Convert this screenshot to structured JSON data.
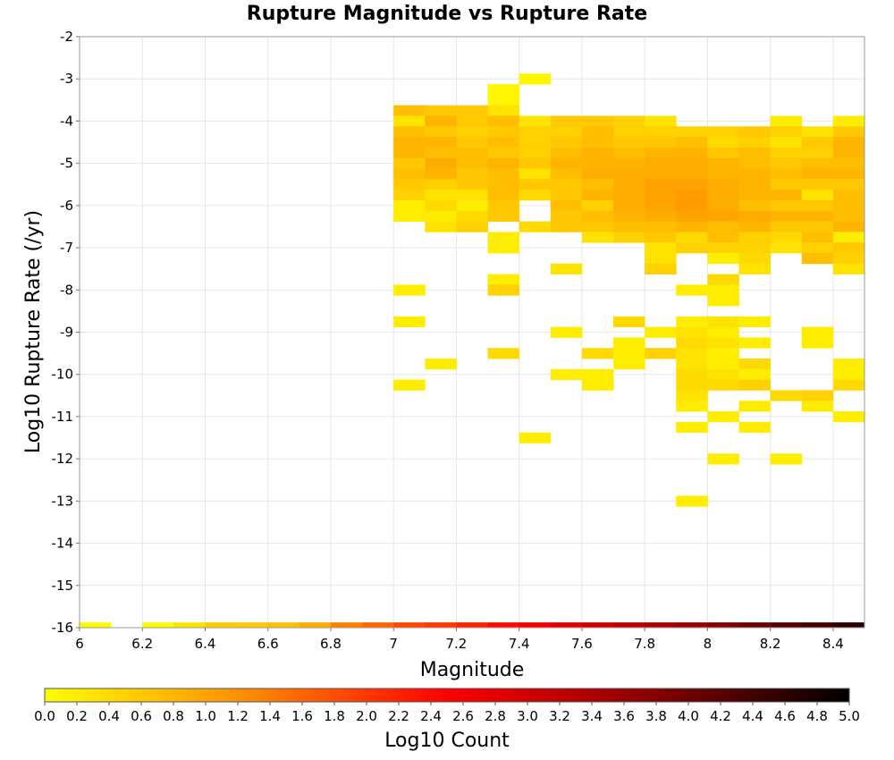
{
  "chart_data": {
    "type": "heatmap",
    "title": "Rupture Magnitude vs Rupture Rate",
    "xlabel": "Magnitude",
    "ylabel": "Log10 Rupture Rate (/yr)",
    "xlim": [
      6.0,
      8.5
    ],
    "ylim": [
      -16,
      -2
    ],
    "x_ticks": [
      "6",
      "6.2",
      "6.4",
      "6.6",
      "6.8",
      "7",
      "7.2",
      "7.4",
      "7.6",
      "7.8",
      "8",
      "8.2",
      "8.4"
    ],
    "y_ticks": [
      "-2",
      "-3",
      "-4",
      "-5",
      "-6",
      "-7",
      "-8",
      "-9",
      "-10",
      "-11",
      "-12",
      "-13",
      "-14",
      "-15",
      "-16"
    ],
    "grid": true,
    "bin_width_x": 0.1,
    "bin_height_y": 0.25,
    "colorbar": {
      "label": "Log10 Count",
      "min": 0.0,
      "max": 5.0,
      "ticks": [
        "0.0",
        "0.2",
        "0.4",
        "0.6",
        "0.8",
        "1.0",
        "1.2",
        "1.4",
        "1.6",
        "1.8",
        "2.0",
        "2.2",
        "2.4",
        "2.6",
        "2.8",
        "3.0",
        "3.2",
        "3.4",
        "3.6",
        "3.8",
        "4.0",
        "4.2",
        "4.4",
        "4.6",
        "4.8",
        "5.0"
      ],
      "colors": [
        "#ffff00",
        "#ff8c00",
        "#ff0000",
        "#8b0000",
        "#000000"
      ]
    },
    "bottom_row_strip": {
      "y": -16,
      "note_values": [
        0.05,
        null,
        0.05,
        0.3,
        0.55,
        0.6,
        0.7,
        0.9,
        1.35,
        1.6,
        1.85,
        2.0,
        2.2,
        2.4,
        2.6,
        2.8,
        3.0,
        3.2,
        3.4,
        3.6,
        3.8,
        4.0,
        4.2,
        4.4,
        4.6
      ]
    },
    "cells": [
      [
        7.3,
        -3.25,
        0.1
      ],
      [
        7.3,
        -3.5,
        0.1
      ],
      [
        7.4,
        -3.0,
        0.1
      ],
      [
        7.0,
        -3.75,
        0.7
      ],
      [
        7.1,
        -3.75,
        0.6
      ],
      [
        7.2,
        -3.75,
        0.6
      ],
      [
        7.3,
        -3.75,
        0.3
      ],
      [
        7.0,
        -4.0,
        0.3
      ],
      [
        7.1,
        -4.0,
        0.8
      ],
      [
        7.2,
        -4.0,
        0.6
      ],
      [
        7.3,
        -4.0,
        0.7
      ],
      [
        7.4,
        -4.0,
        0.3
      ],
      [
        7.5,
        -4.0,
        0.6
      ],
      [
        7.6,
        -4.0,
        0.6
      ],
      [
        7.7,
        -4.0,
        0.5
      ],
      [
        7.8,
        -4.0,
        0.3
      ],
      [
        8.2,
        -4.0,
        0.2
      ],
      [
        8.4,
        -4.0,
        0.2
      ],
      [
        7.0,
        -4.25,
        0.7
      ],
      [
        7.1,
        -4.25,
        0.6
      ],
      [
        7.2,
        -4.25,
        0.5
      ],
      [
        7.3,
        -4.25,
        0.6
      ],
      [
        7.4,
        -4.25,
        0.5
      ],
      [
        7.5,
        -4.25,
        0.5
      ],
      [
        7.6,
        -4.25,
        0.7
      ],
      [
        7.7,
        -4.25,
        0.5
      ],
      [
        7.8,
        -4.25,
        0.5
      ],
      [
        7.9,
        -4.25,
        0.5
      ],
      [
        8.0,
        -4.25,
        0.5
      ],
      [
        8.1,
        -4.25,
        0.6
      ],
      [
        8.2,
        -4.25,
        0.5
      ],
      [
        8.3,
        -4.25,
        0.3
      ],
      [
        8.4,
        -4.25,
        0.6
      ],
      [
        7.0,
        -4.5,
        0.8
      ],
      [
        7.1,
        -4.5,
        0.8
      ],
      [
        7.2,
        -4.5,
        0.6
      ],
      [
        7.3,
        -4.5,
        0.7
      ],
      [
        7.4,
        -4.5,
        0.5
      ],
      [
        7.5,
        -4.5,
        0.6
      ],
      [
        7.6,
        -4.5,
        0.7
      ],
      [
        7.7,
        -4.5,
        0.6
      ],
      [
        7.8,
        -4.5,
        0.6
      ],
      [
        7.9,
        -4.5,
        0.7
      ],
      [
        8.0,
        -4.5,
        0.4
      ],
      [
        8.1,
        -4.5,
        0.5
      ],
      [
        8.2,
        -4.5,
        0.3
      ],
      [
        8.3,
        -4.5,
        0.6
      ],
      [
        8.4,
        -4.5,
        0.8
      ],
      [
        7.0,
        -4.75,
        0.8
      ],
      [
        7.1,
        -4.75,
        0.7
      ],
      [
        7.2,
        -4.75,
        0.7
      ],
      [
        7.3,
        -4.75,
        0.6
      ],
      [
        7.4,
        -4.75,
        0.5
      ],
      [
        7.5,
        -4.75,
        0.7
      ],
      [
        7.6,
        -4.75,
        0.8
      ],
      [
        7.7,
        -4.75,
        0.7
      ],
      [
        7.8,
        -4.75,
        0.8
      ],
      [
        7.9,
        -4.75,
        0.8
      ],
      [
        8.0,
        -4.75,
        0.6
      ],
      [
        8.1,
        -4.75,
        0.7
      ],
      [
        8.2,
        -4.75,
        0.5
      ],
      [
        8.3,
        -4.75,
        0.5
      ],
      [
        8.4,
        -4.75,
        0.8
      ],
      [
        7.0,
        -5.0,
        0.6
      ],
      [
        7.1,
        -5.0,
        0.9
      ],
      [
        7.2,
        -5.0,
        0.7
      ],
      [
        7.3,
        -5.0,
        0.8
      ],
      [
        7.4,
        -5.0,
        0.6
      ],
      [
        7.5,
        -5.0,
        0.8
      ],
      [
        7.6,
        -5.0,
        0.8
      ],
      [
        7.7,
        -5.0,
        0.8
      ],
      [
        7.8,
        -5.0,
        0.9
      ],
      [
        7.9,
        -5.0,
        0.9
      ],
      [
        8.0,
        -5.0,
        0.8
      ],
      [
        8.1,
        -5.0,
        0.7
      ],
      [
        8.2,
        -5.0,
        0.6
      ],
      [
        8.3,
        -5.0,
        0.7
      ],
      [
        8.4,
        -5.0,
        0.7
      ],
      [
        7.0,
        -5.25,
        0.7
      ],
      [
        7.1,
        -5.25,
        0.8
      ],
      [
        7.2,
        -5.25,
        0.6
      ],
      [
        7.3,
        -5.25,
        0.7
      ],
      [
        7.4,
        -5.25,
        0.3
      ],
      [
        7.5,
        -5.25,
        0.7
      ],
      [
        7.6,
        -5.25,
        0.9
      ],
      [
        7.7,
        -5.25,
        0.9
      ],
      [
        7.8,
        -5.25,
        0.9
      ],
      [
        7.9,
        -5.25,
        0.9
      ],
      [
        8.0,
        -5.25,
        0.8
      ],
      [
        8.1,
        -5.25,
        0.8
      ],
      [
        8.2,
        -5.25,
        0.7
      ],
      [
        8.3,
        -5.25,
        0.8
      ],
      [
        8.4,
        -5.25,
        0.8
      ],
      [
        7.0,
        -5.5,
        0.6
      ],
      [
        7.1,
        -5.5,
        0.5
      ],
      [
        7.2,
        -5.5,
        0.6
      ],
      [
        7.3,
        -5.5,
        0.7
      ],
      [
        7.4,
        -5.5,
        0.6
      ],
      [
        7.5,
        -5.5,
        0.6
      ],
      [
        7.6,
        -5.5,
        0.7
      ],
      [
        7.7,
        -5.5,
        0.9
      ],
      [
        7.8,
        -5.5,
        1.0
      ],
      [
        7.9,
        -5.5,
        1.0
      ],
      [
        8.0,
        -5.5,
        0.9
      ],
      [
        8.1,
        -5.5,
        0.8
      ],
      [
        8.2,
        -5.5,
        0.6
      ],
      [
        8.3,
        -5.5,
        0.6
      ],
      [
        8.4,
        -5.5,
        0.6
      ],
      [
        7.0,
        -5.75,
        0.5
      ],
      [
        7.1,
        -5.75,
        0.3
      ],
      [
        7.2,
        -5.75,
        0.3
      ],
      [
        7.3,
        -5.75,
        0.7
      ],
      [
        7.4,
        -5.75,
        0.4
      ],
      [
        7.5,
        -5.75,
        0.6
      ],
      [
        7.6,
        -5.75,
        0.8
      ],
      [
        7.7,
        -5.75,
        0.9
      ],
      [
        7.8,
        -5.75,
        1.0
      ],
      [
        7.9,
        -5.75,
        1.1
      ],
      [
        8.0,
        -5.75,
        0.9
      ],
      [
        8.1,
        -5.75,
        0.8
      ],
      [
        8.2,
        -5.75,
        0.8
      ],
      [
        8.3,
        -5.75,
        0.3
      ],
      [
        8.4,
        -5.75,
        0.7
      ],
      [
        7.0,
        -6.0,
        0.2
      ],
      [
        7.1,
        -6.0,
        0.4
      ],
      [
        7.2,
        -6.0,
        0.2
      ],
      [
        7.3,
        -6.0,
        0.6
      ],
      [
        7.5,
        -6.0,
        0.7
      ],
      [
        7.6,
        -6.0,
        0.5
      ],
      [
        7.7,
        -6.0,
        0.9
      ],
      [
        7.8,
        -6.0,
        1.0
      ],
      [
        7.9,
        -6.0,
        1.1
      ],
      [
        8.0,
        -6.0,
        0.9
      ],
      [
        8.1,
        -6.0,
        0.7
      ],
      [
        8.2,
        -6.0,
        0.6
      ],
      [
        8.3,
        -6.0,
        0.6
      ],
      [
        8.4,
        -6.0,
        0.7
      ],
      [
        7.0,
        -6.25,
        0.2
      ],
      [
        7.1,
        -6.25,
        0.2
      ],
      [
        7.2,
        -6.25,
        0.4
      ],
      [
        7.3,
        -6.25,
        0.6
      ],
      [
        7.5,
        -6.25,
        0.6
      ],
      [
        7.6,
        -6.25,
        0.7
      ],
      [
        7.7,
        -6.25,
        0.8
      ],
      [
        7.8,
        -6.25,
        0.9
      ],
      [
        7.9,
        -6.25,
        1.0
      ],
      [
        8.0,
        -6.25,
        1.0
      ],
      [
        8.1,
        -6.25,
        0.9
      ],
      [
        8.2,
        -6.25,
        0.8
      ],
      [
        8.3,
        -6.25,
        0.8
      ],
      [
        8.4,
        -6.25,
        0.7
      ],
      [
        7.1,
        -6.5,
        0.3
      ],
      [
        7.2,
        -6.5,
        0.5
      ],
      [
        7.4,
        -6.5,
        0.4
      ],
      [
        7.5,
        -6.5,
        0.6
      ],
      [
        7.6,
        -6.5,
        0.6
      ],
      [
        7.7,
        -6.5,
        0.7
      ],
      [
        7.8,
        -6.5,
        0.7
      ],
      [
        7.9,
        -6.5,
        0.8
      ],
      [
        8.0,
        -6.5,
        0.7
      ],
      [
        8.1,
        -6.5,
        0.8
      ],
      [
        8.2,
        -6.5,
        0.6
      ],
      [
        8.3,
        -6.5,
        0.6
      ],
      [
        8.4,
        -6.5,
        0.8
      ],
      [
        7.3,
        -6.75,
        0.2
      ],
      [
        7.6,
        -6.75,
        0.3
      ],
      [
        7.7,
        -6.75,
        0.5
      ],
      [
        7.8,
        -6.75,
        0.6
      ],
      [
        7.9,
        -6.75,
        0.4
      ],
      [
        8.0,
        -6.75,
        0.7
      ],
      [
        8.1,
        -6.75,
        0.5
      ],
      [
        8.2,
        -6.75,
        0.4
      ],
      [
        8.3,
        -6.75,
        0.7
      ],
      [
        8.4,
        -6.75,
        0.2
      ],
      [
        7.3,
        -7.0,
        0.2
      ],
      [
        7.8,
        -7.0,
        0.3
      ],
      [
        7.9,
        -7.0,
        0.5
      ],
      [
        8.0,
        -7.0,
        0.5
      ],
      [
        8.1,
        -7.0,
        0.5
      ],
      [
        8.2,
        -7.0,
        0.3
      ],
      [
        8.3,
        -7.0,
        0.5
      ],
      [
        8.4,
        -7.0,
        0.6
      ],
      [
        7.8,
        -7.25,
        0.3
      ],
      [
        8.0,
        -7.25,
        0.2
      ],
      [
        8.1,
        -7.25,
        0.4
      ],
      [
        8.3,
        -7.25,
        0.7
      ],
      [
        8.4,
        -7.25,
        0.5
      ],
      [
        7.5,
        -7.5,
        0.3
      ],
      [
        7.8,
        -7.5,
        0.5
      ],
      [
        8.1,
        -7.5,
        0.3
      ],
      [
        8.4,
        -7.5,
        0.3
      ],
      [
        7.3,
        -7.75,
        0.2
      ],
      [
        8.0,
        -7.75,
        0.4
      ],
      [
        7.0,
        -8.0,
        0.2
      ],
      [
        7.3,
        -8.0,
        0.5
      ],
      [
        7.9,
        -8.0,
        0.2
      ],
      [
        8.0,
        -8.0,
        0.2
      ],
      [
        8.0,
        -8.25,
        0.2
      ],
      [
        7.0,
        -8.75,
        0.2
      ],
      [
        7.7,
        -8.75,
        0.4
      ],
      [
        7.9,
        -8.75,
        0.2
      ],
      [
        8.0,
        -8.75,
        0.3
      ],
      [
        8.1,
        -8.75,
        0.2
      ],
      [
        7.5,
        -9.0,
        0.2
      ],
      [
        7.8,
        -9.0,
        0.2
      ],
      [
        7.9,
        -9.0,
        0.3
      ],
      [
        8.0,
        -9.0,
        0.2
      ],
      [
        8.3,
        -9.0,
        0.2
      ],
      [
        7.7,
        -9.25,
        0.2
      ],
      [
        7.9,
        -9.25,
        0.4
      ],
      [
        8.0,
        -9.25,
        0.3
      ],
      [
        8.1,
        -9.25,
        0.2
      ],
      [
        8.3,
        -9.25,
        0.2
      ],
      [
        7.3,
        -9.5,
        0.4
      ],
      [
        7.6,
        -9.5,
        0.4
      ],
      [
        7.7,
        -9.5,
        0.2
      ],
      [
        7.8,
        -9.5,
        0.5
      ],
      [
        7.9,
        -9.5,
        0.3
      ],
      [
        8.0,
        -9.5,
        0.2
      ],
      [
        7.1,
        -9.75,
        0.2
      ],
      [
        7.7,
        -9.75,
        0.2
      ],
      [
        7.9,
        -9.75,
        0.3
      ],
      [
        8.0,
        -9.75,
        0.2
      ],
      [
        8.1,
        -9.75,
        0.4
      ],
      [
        8.4,
        -9.75,
        0.2
      ],
      [
        7.5,
        -10.0,
        0.2
      ],
      [
        7.6,
        -10.0,
        0.2
      ],
      [
        7.9,
        -10.0,
        0.4
      ],
      [
        8.0,
        -10.0,
        0.3
      ],
      [
        8.1,
        -10.0,
        0.2
      ],
      [
        8.4,
        -10.0,
        0.2
      ],
      [
        7.0,
        -10.25,
        0.2
      ],
      [
        7.6,
        -10.25,
        0.2
      ],
      [
        7.9,
        -10.25,
        0.4
      ],
      [
        8.0,
        -10.25,
        0.4
      ],
      [
        8.1,
        -10.25,
        0.5
      ],
      [
        8.4,
        -10.25,
        0.4
      ],
      [
        7.9,
        -10.5,
        0.3
      ],
      [
        8.2,
        -10.5,
        0.4
      ],
      [
        8.3,
        -10.5,
        0.5
      ],
      [
        7.9,
        -10.75,
        0.2
      ],
      [
        8.1,
        -10.75,
        0.2
      ],
      [
        8.3,
        -10.75,
        0.2
      ],
      [
        8.0,
        -11.0,
        0.2
      ],
      [
        8.4,
        -11.0,
        0.2
      ],
      [
        7.9,
        -11.25,
        0.2
      ],
      [
        8.1,
        -11.25,
        0.2
      ],
      [
        7.4,
        -11.5,
        0.2
      ],
      [
        8.0,
        -12.0,
        0.2
      ],
      [
        8.2,
        -12.0,
        0.2
      ],
      [
        7.9,
        -13.0,
        0.2
      ]
    ]
  }
}
